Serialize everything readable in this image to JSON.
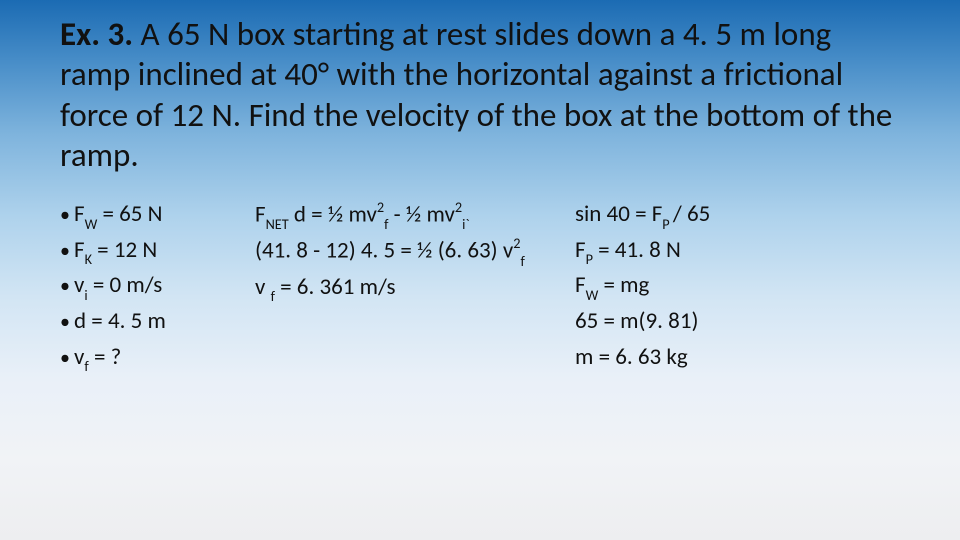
{
  "background": {
    "gradient_stops": [
      "#1b6bb3",
      "#4a8fc9",
      "#7fb4dd",
      "#aed2ec",
      "#d2e5f4",
      "#e9f0f8",
      "#f1f3f6",
      "#edeef0"
    ]
  },
  "title": {
    "lead": "Ex. 3.",
    "body_parts": [
      "  A 65 N box starting at rest slides down a 4. 5 m long ramp inclined at 40° with the horizontal against a frictional force of 12 N.  Find the velocity of the box at the bottom of the ramp."
    ],
    "fontsize": 33,
    "color": "#111111"
  },
  "columns": {
    "fontsize": 23,
    "color": "#111111",
    "col1": {
      "items": [
        {
          "pre": "F",
          "sub": "W",
          "post": " = 65 N"
        },
        {
          "pre": "F",
          "sub": "K",
          "post": " =  12 N"
        },
        {
          "pre": "v",
          "sub": "i",
          "post": " = 0 m/s"
        },
        {
          "pre": "d = 4. 5 m"
        },
        {
          "pre": "v",
          "sub": "f",
          "post": " = ?"
        }
      ]
    },
    "col2": {
      "line1": {
        "p1": "F",
        "s1": "NET",
        "p2": " d = ½ mv",
        "sup1": "2",
        "s2": "f",
        "p3": " - ½ mv",
        "sup2": "2",
        "s3": "i`"
      },
      "line2": {
        "p1": "(41. 8 - 12) 4. 5 = ½ (6. 63) v",
        "sup1": "2",
        "s1": "f"
      },
      "line3": {
        "p1": "v ",
        "s1": "f",
        "p2": " = 6. 361 m/s"
      }
    },
    "col3": {
      "line1": {
        "p1": "sin 40 = F",
        "s1": "P ",
        "p2": " / 65"
      },
      "line2": {
        "p1": "F",
        "s1": "P",
        "p2": " = 41. 8 N"
      },
      "line3": {
        "p1": "F",
        "s1": "W",
        "p2": " = mg"
      },
      "line4": {
        "p1": "65 = m(9. 81)"
      },
      "line5": {
        "p1": "m = 6. 63 kg"
      }
    }
  }
}
